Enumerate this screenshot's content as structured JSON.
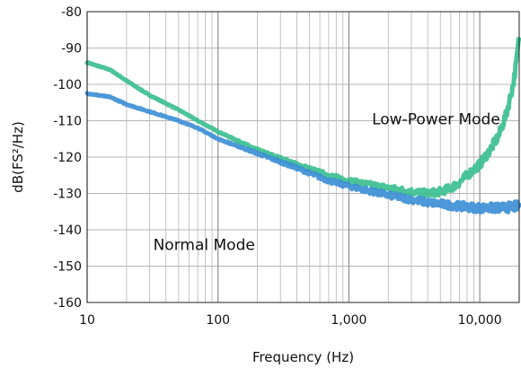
{
  "chart_data": {
    "type": "line",
    "xscale": "log",
    "xlim": [
      10,
      20000
    ],
    "ylim": [
      -160,
      -80
    ],
    "grid": true,
    "xlabel": "Frequency (Hz)",
    "ylabel": "dB(FS²/Hz)",
    "title": "",
    "x_ticks": [
      10,
      100,
      1000,
      10000
    ],
    "x_tick_labels": [
      "10",
      "100",
      "1,000",
      "10,000"
    ],
    "y_ticks": [
      -80,
      -90,
      -100,
      -110,
      -120,
      -130,
      -140,
      -150,
      -160
    ],
    "y_tick_labels": [
      "-80",
      "-90",
      "-100",
      "-110",
      "-120",
      "-130",
      "-140",
      "-150",
      "-160"
    ],
    "series": [
      {
        "name": "Low-Power Mode",
        "color": "#3bbf8f",
        "points": [
          [
            10,
            -94
          ],
          [
            15,
            -96
          ],
          [
            20,
            -99
          ],
          [
            30,
            -103
          ],
          [
            50,
            -107
          ],
          [
            70,
            -110
          ],
          [
            100,
            -113
          ],
          [
            200,
            -118
          ],
          [
            400,
            -122
          ],
          [
            700,
            -125
          ],
          [
            1000,
            -126.5
          ],
          [
            2000,
            -128.5
          ],
          [
            3000,
            -129.5
          ],
          [
            4000,
            -130
          ],
          [
            5000,
            -129.5
          ],
          [
            6000,
            -128.5
          ],
          [
            7000,
            -127
          ],
          [
            8000,
            -125
          ],
          [
            10000,
            -122
          ],
          [
            12000,
            -118
          ],
          [
            14000,
            -114
          ],
          [
            16000,
            -108
          ],
          [
            18000,
            -100
          ],
          [
            19000,
            -94
          ],
          [
            20000,
            -87
          ]
        ]
      },
      {
        "name": "Normal Mode",
        "color": "#3d8fd6",
        "points": [
          [
            10,
            -102.5
          ],
          [
            15,
            -103.5
          ],
          [
            20,
            -105.5
          ],
          [
            30,
            -107.5
          ],
          [
            50,
            -110
          ],
          [
            70,
            -112
          ],
          [
            100,
            -115
          ],
          [
            200,
            -119
          ],
          [
            400,
            -123
          ],
          [
            700,
            -126.5
          ],
          [
            1000,
            -128
          ],
          [
            2000,
            -130.5
          ],
          [
            4000,
            -132.5
          ],
          [
            7000,
            -133.5
          ],
          [
            10000,
            -134
          ],
          [
            15000,
            -134
          ],
          [
            20000,
            -133.5
          ]
        ]
      }
    ],
    "annotations": [
      {
        "text": "Low-Power Mode",
        "x": 1500,
        "y": -111
      },
      {
        "text": "Normal Mode",
        "x": 32,
        "y": -145.5
      }
    ]
  }
}
